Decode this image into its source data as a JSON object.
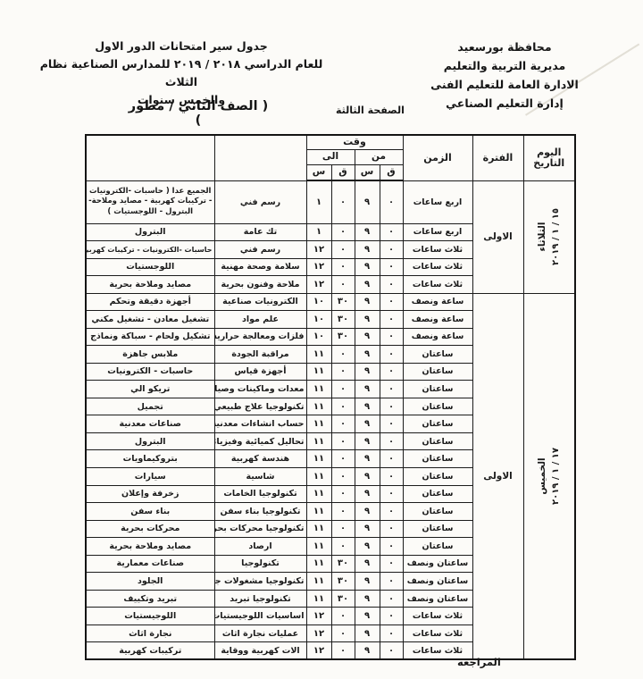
{
  "document": {
    "org": {
      "lines": [
        "محافظة بورسعيد",
        "مديرية التربية والتعليم",
        "الادارة العامة للتعليم الفنى",
        "إدارة التعليم الصناعي"
      ]
    },
    "title": {
      "lines": [
        "جدول سير امتحانات الدور الاول",
        "للعام الدراسي ٢٠١٨‏ / ‏٢٠١٩ للمدارس الصناعية نظام الثلاث",
        "والخمس سنوات"
      ]
    },
    "grade_label": "( الصف الثاني / مطور )",
    "page_label": "الصفحة الثالثة",
    "review_label": "المراجعه"
  },
  "table": {
    "headers": {
      "day_line1": "اليوم",
      "day_line2": "التاريخ",
      "period": "الفترة",
      "duration": "الزمن",
      "time": "وقت",
      "from": "من",
      "to": "الى",
      "hours": "س",
      "minutes": "ق"
    },
    "groups": [
      {
        "day": "الثلاثاء",
        "date": "١٥‏ / ‏١‏ / ‏٢٠١٩",
        "period": "الاولى",
        "rows": [
          {
            "specialty": "الجميع عدا ( حاسبات -الكترونيات - تركيبات كهربية - مصايد وملاحة- البترول - اللوجستيات )",
            "subject": "رسم فني",
            "to_h": "١",
            "to_m": "٠",
            "from_h": "٩",
            "from_m": "٠",
            "duration": "اربع ساعات",
            "tall": true
          },
          {
            "specialty": "البترول",
            "subject": "تك عامة",
            "to_h": "١",
            "to_m": "٠",
            "from_h": "٩",
            "from_m": "٠",
            "duration": "اربع ساعات"
          },
          {
            "specialty": "حاسبات -الكترونيات - تركيبات كهربية",
            "subject": "رسم فني",
            "to_h": "١٢",
            "to_m": "٠",
            "from_h": "٩",
            "from_m": "٠",
            "duration": "ثلاث ساعات"
          },
          {
            "specialty": "اللوجستيات",
            "subject": "سلامة وصحة مهنية",
            "to_h": "١٢",
            "to_m": "٠",
            "from_h": "٩",
            "from_m": "٠",
            "duration": "ثلاث ساعات"
          },
          {
            "specialty": "مصايد وملاحة بحرية",
            "subject": "ملاحة وفنون بحرية",
            "to_h": "١٢",
            "to_m": "٠",
            "from_h": "٩",
            "from_m": "٠",
            "duration": "ثلاث ساعات"
          }
        ]
      },
      {
        "day": "الخميس",
        "date": "١٧‏ / ‏١‏ / ‏٢٠١٩",
        "period": "الاولى",
        "rows": [
          {
            "specialty": "أجهزة دقيقة وتحكم",
            "subject": "الكترونيات صناعية",
            "to_h": "١٠",
            "to_m": "٣٠",
            "from_h": "٩",
            "from_m": "٠",
            "duration": "ساعة ونصف"
          },
          {
            "specialty": "تشغيل معادن - تشغيل مكني",
            "subject": "علم مواد",
            "to_h": "١٠",
            "to_m": "٣٠",
            "from_h": "٩",
            "from_m": "٠",
            "duration": "ساعة ونصف"
          },
          {
            "specialty": "تشكيل ولحام - سباكة ونماذج",
            "subject": "فلزات ومعالجة حرارية",
            "to_h": "١٠",
            "to_m": "٣٠",
            "from_h": "٩",
            "from_m": "٠",
            "duration": "ساعة ونصف"
          },
          {
            "specialty": "ملابس جاهزة",
            "subject": "مراقبة الجودة",
            "to_h": "١١",
            "to_m": "٠",
            "from_h": "٩",
            "from_m": "٠",
            "duration": "ساعتان"
          },
          {
            "specialty": "حاسبات - الكترونيات",
            "subject": "أجهزة قياس",
            "to_h": "١١",
            "to_m": "٠",
            "from_h": "٩",
            "from_m": "٠",
            "duration": "ساعتان"
          },
          {
            "specialty": "تريكو الي",
            "subject": "معدات وماكينات وصيانة",
            "to_h": "١١",
            "to_m": "٠",
            "from_h": "٩",
            "from_m": "٠",
            "duration": "ساعتان"
          },
          {
            "specialty": "تجميل",
            "subject": "تكنولوجيا علاج طبيعي",
            "to_h": "١١",
            "to_m": "٠",
            "from_h": "٩",
            "from_m": "٠",
            "duration": "ساعتان"
          },
          {
            "specialty": "صناعات معدنية",
            "subject": "حساب انشاءات معدنية",
            "to_h": "١١",
            "to_m": "٠",
            "from_h": "٩",
            "from_m": "٠",
            "duration": "ساعتان"
          },
          {
            "specialty": "البترول",
            "subject": "تحاليل كميائية وفيزيائية",
            "to_h": "١١",
            "to_m": "٠",
            "from_h": "٩",
            "from_m": "٠",
            "duration": "ساعتان"
          },
          {
            "specialty": "بتروكيماويات",
            "subject": "هندسة كهربية",
            "to_h": "١١",
            "to_m": "٠",
            "from_h": "٩",
            "from_m": "٠",
            "duration": "ساعتان"
          },
          {
            "specialty": "سيارات",
            "subject": "شاسية",
            "to_h": "١١",
            "to_m": "٠",
            "from_h": "٩",
            "from_m": "٠",
            "duration": "ساعتان"
          },
          {
            "specialty": "زخرفة وإعلان",
            "subject": "تكنولوجيا الخامات",
            "to_h": "١١",
            "to_m": "٠",
            "from_h": "٩",
            "from_m": "٠",
            "duration": "ساعتان"
          },
          {
            "specialty": "بناء سفن",
            "subject": "تكنولوجيا بناء سفن",
            "to_h": "١١",
            "to_m": "٠",
            "from_h": "٩",
            "from_m": "٠",
            "duration": "ساعتان"
          },
          {
            "specialty": "محركات بحرية",
            "subject": "تكنولوجيا محركات بحرية",
            "to_h": "١١",
            "to_m": "٠",
            "from_h": "٩",
            "from_m": "٠",
            "duration": "ساعتان"
          },
          {
            "specialty": "مصايد وملاحة بحرية",
            "subject": "ارصاد",
            "to_h": "١١",
            "to_m": "٠",
            "from_h": "٩",
            "from_m": "٠",
            "duration": "ساعتان"
          },
          {
            "specialty": "صناعات معمارية",
            "subject": "تكنولوجيا",
            "to_h": "١١",
            "to_m": "٣٠",
            "from_h": "٩",
            "from_m": "٠",
            "duration": "ساعتان ونصف"
          },
          {
            "specialty": "الجلود",
            "subject": "تكنولوجيا مشغولات جلدية",
            "to_h": "١١",
            "to_m": "٣٠",
            "from_h": "٩",
            "from_m": "٠",
            "duration": "ساعتان ونصف"
          },
          {
            "specialty": "تبريد وتكييف",
            "subject": "تكنولوجيا تبريد",
            "to_h": "١١",
            "to_m": "٣٠",
            "from_h": "٩",
            "from_m": "٠",
            "duration": "ساعتان ونصف"
          },
          {
            "specialty": "اللوجيستيات",
            "subject": "اساسيات اللوجيستيات",
            "to_h": "١٢",
            "to_m": "٠",
            "from_h": "٩",
            "from_m": "٠",
            "duration": "ثلاث ساعات"
          },
          {
            "specialty": "نجارة اثاث",
            "subject": "عمليات نجارة اثاث",
            "to_h": "١٢",
            "to_m": "٠",
            "from_h": "٩",
            "from_m": "٠",
            "duration": "ثلاث ساعات"
          },
          {
            "specialty": "تركيبات كهربية",
            "subject": "الات كهربية ووقاية",
            "to_h": "١٢",
            "to_m": "٠",
            "from_h": "٩",
            "from_m": "٠",
            "duration": "ثلاث ساعات"
          }
        ]
      }
    ]
  }
}
